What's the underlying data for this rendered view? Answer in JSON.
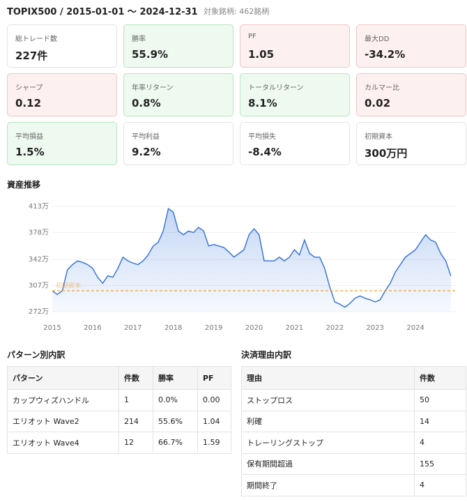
{
  "header": {
    "title": "TOPIX500 / 2015-01-01 〜 2024-12-31",
    "subtitle": "対象銘柄: 462銘柄"
  },
  "cards": [
    {
      "label": "総トレード数",
      "value": "227件",
      "background": "#ffffff",
      "border": "#e3e3e3"
    },
    {
      "label": "勝率",
      "value": "55.9%",
      "background": "#eefaf0",
      "border": "#b8e4c1"
    },
    {
      "label": "PF",
      "value": "1.05",
      "background": "#fdf0f0",
      "border": "#f0c6c6"
    },
    {
      "label": "最大DD",
      "value": "-34.2%",
      "background": "#fdf0f0",
      "border": "#f0c6c6"
    },
    {
      "label": "シャープ",
      "value": "0.12",
      "background": "#fdf0f0",
      "border": "#f0c6c6"
    },
    {
      "label": "年率リターン",
      "value": "0.8%",
      "background": "#eefaf0",
      "border": "#b8e4c1"
    },
    {
      "label": "トータルリターン",
      "value": "8.1%",
      "background": "#eefaf0",
      "border": "#b8e4c1"
    },
    {
      "label": "カルマー比",
      "value": "0.02",
      "background": "#fdf0f0",
      "border": "#f0c6c6"
    },
    {
      "label": "平均損益",
      "value": "1.5%",
      "background": "#eefaf0",
      "border": "#b8e4c1"
    },
    {
      "label": "平均利益",
      "value": "9.2%",
      "background": "#ffffff",
      "border": "#e3e3e3"
    },
    {
      "label": "平均損失",
      "value": "-8.4%",
      "background": "#ffffff",
      "border": "#e3e3e3"
    },
    {
      "label": "初期資本",
      "value": "300万円",
      "background": "#ffffff",
      "border": "#e3e3e3"
    }
  ],
  "chart_data": {
    "type": "area",
    "title": "資産推移",
    "color": "#2f6fdc",
    "grid": true,
    "x": [
      2015,
      2015.125,
      2015.25,
      2015.375,
      2015.5,
      2015.625,
      2015.75,
      2015.875,
      2016,
      2016.125,
      2016.25,
      2016.375,
      2016.5,
      2016.625,
      2016.75,
      2016.875,
      2017,
      2017.125,
      2017.25,
      2017.375,
      2017.5,
      2017.625,
      2017.75,
      2017.875,
      2018,
      2018.125,
      2018.25,
      2018.375,
      2018.5,
      2018.625,
      2018.75,
      2018.875,
      2019,
      2019.125,
      2019.25,
      2019.375,
      2019.5,
      2019.625,
      2019.75,
      2019.875,
      2020,
      2020.125,
      2020.25,
      2020.375,
      2020.5,
      2020.625,
      2020.75,
      2020.875,
      2021,
      2021.125,
      2021.25,
      2021.375,
      2021.5,
      2021.625,
      2021.75,
      2021.875,
      2022,
      2022.125,
      2022.25,
      2022.375,
      2022.5,
      2022.625,
      2022.75,
      2022.875,
      2023,
      2023.125,
      2023.25,
      2023.375,
      2023.5,
      2023.625,
      2023.75,
      2023.875,
      2024,
      2024.125,
      2024.25,
      2024.375,
      2024.5,
      2024.625,
      2024.75,
      2024.875
    ],
    "values": [
      300,
      295,
      300,
      328,
      335,
      340,
      338,
      335,
      330,
      318,
      310,
      320,
      318,
      330,
      345,
      340,
      337,
      335,
      340,
      348,
      360,
      365,
      380,
      410,
      405,
      380,
      375,
      380,
      378,
      385,
      380,
      360,
      362,
      360,
      358,
      352,
      345,
      350,
      355,
      375,
      383,
      375,
      340,
      340,
      340,
      345,
      340,
      345,
      355,
      348,
      368,
      350,
      345,
      345,
      330,
      305,
      285,
      282,
      278,
      283,
      290,
      293,
      290,
      288,
      285,
      288,
      300,
      310,
      325,
      335,
      345,
      350,
      355,
      365,
      375,
      368,
      365,
      350,
      340,
      320
    ],
    "xlim": [
      2015,
      2025
    ],
    "xticks": [
      2015,
      2016,
      2017,
      2018,
      2019,
      2020,
      2021,
      2022,
      2023,
      2024
    ],
    "ylim": [
      272,
      413
    ],
    "yticks": [
      {
        "value": 272,
        "label": "272万"
      },
      {
        "value": 307,
        "label": "307万"
      },
      {
        "value": 342,
        "label": "342万"
      },
      {
        "value": 378,
        "label": "378万"
      },
      {
        "value": 413,
        "label": "413万"
      }
    ],
    "reference_line": {
      "value": 300,
      "label": "初期資本",
      "color": "#f0a030"
    }
  },
  "pattern_table": {
    "title": "パターン別内訳",
    "columns": [
      "パターン",
      "件数",
      "勝率",
      "PF"
    ],
    "rows": [
      [
        "カップウィズハンドル",
        "1",
        "0.0%",
        "0.00"
      ],
      [
        "エリオット Wave2",
        "214",
        "55.6%",
        "1.04"
      ],
      [
        "エリオット Wave4",
        "12",
        "66.7%",
        "1.59"
      ]
    ]
  },
  "exit_table": {
    "title": "決済理由内訳",
    "columns": [
      "理由",
      "件数"
    ],
    "rows": [
      [
        "ストップロス",
        "50"
      ],
      [
        "利確",
        "14"
      ],
      [
        "トレーリングストップ",
        "4"
      ],
      [
        "保有期間超過",
        "155"
      ],
      [
        "期間終了",
        "4"
      ]
    ]
  }
}
